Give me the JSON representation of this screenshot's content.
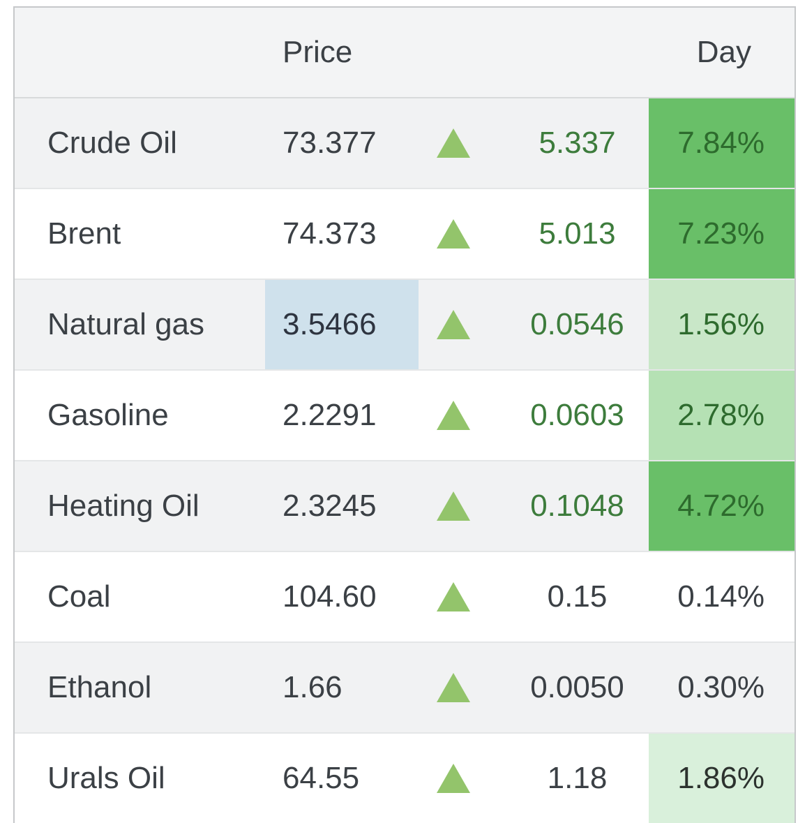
{
  "table": {
    "header": {
      "name": "",
      "price": "Price",
      "day": "Day"
    },
    "rows": [
      {
        "name": "Crude Oil",
        "price": "73.377",
        "direction": "up",
        "change": "5.337",
        "day": "7.84%",
        "change_style": "green",
        "day_style": "strong",
        "price_style": "normal"
      },
      {
        "name": "Brent",
        "price": "74.373",
        "direction": "up",
        "change": "5.013",
        "day": "7.23%",
        "change_style": "green",
        "day_style": "strong",
        "price_style": "normal"
      },
      {
        "name": "Natural gas",
        "price": "3.5466",
        "direction": "up",
        "change": "0.0546",
        "day": "1.56%",
        "change_style": "green",
        "day_style": "light",
        "price_style": "highlight-blue"
      },
      {
        "name": "Gasoline",
        "price": "2.2291",
        "direction": "up",
        "change": "0.0603",
        "day": "2.78%",
        "change_style": "green",
        "day_style": "medium",
        "price_style": "normal"
      },
      {
        "name": "Heating Oil",
        "price": "2.3245",
        "direction": "up",
        "change": "0.1048",
        "day": "4.72%",
        "change_style": "green",
        "day_style": "strong",
        "price_style": "normal"
      },
      {
        "name": "Coal",
        "price": "104.60",
        "direction": "up",
        "change": "0.15",
        "day": "0.14%",
        "change_style": "dark",
        "day_style": "none",
        "price_style": "normal"
      },
      {
        "name": "Ethanol",
        "price": "1.66",
        "direction": "up",
        "change": "0.0050",
        "day": "0.30%",
        "change_style": "dark",
        "day_style": "none",
        "price_style": "normal"
      },
      {
        "name": "Urals Oil",
        "price": "64.55",
        "direction": "up",
        "change": "1.18",
        "day": "1.86%",
        "change_style": "dark",
        "day_style": "faint",
        "price_style": "normal"
      }
    ]
  },
  "icons": {
    "up_triangle": "up-triangle-icon"
  },
  "colors": {
    "text_dark": "#3b4045",
    "text_price_dark": "#2e3440",
    "change_green": "#3d7c3c",
    "triangle_green": "#93c46b",
    "day_strong_bg": "#69bf68",
    "day_strong_text": "#2d6b2d",
    "day_medium_bg": "#b5e1b4",
    "day_light_bg": "#c9e7c8",
    "day_green_text": "#2e6b2e",
    "day_faint_bg": "#d9f0db",
    "day_faint_text": "#2c322e",
    "highlight_blue": "#cfe1ec",
    "header_bg": "#f3f4f5",
    "row_alt_bg": "#f1f2f3",
    "border_outer": "#c6c8ca",
    "border_header": "#d8dadb",
    "border_row": "#e4e6e7"
  }
}
